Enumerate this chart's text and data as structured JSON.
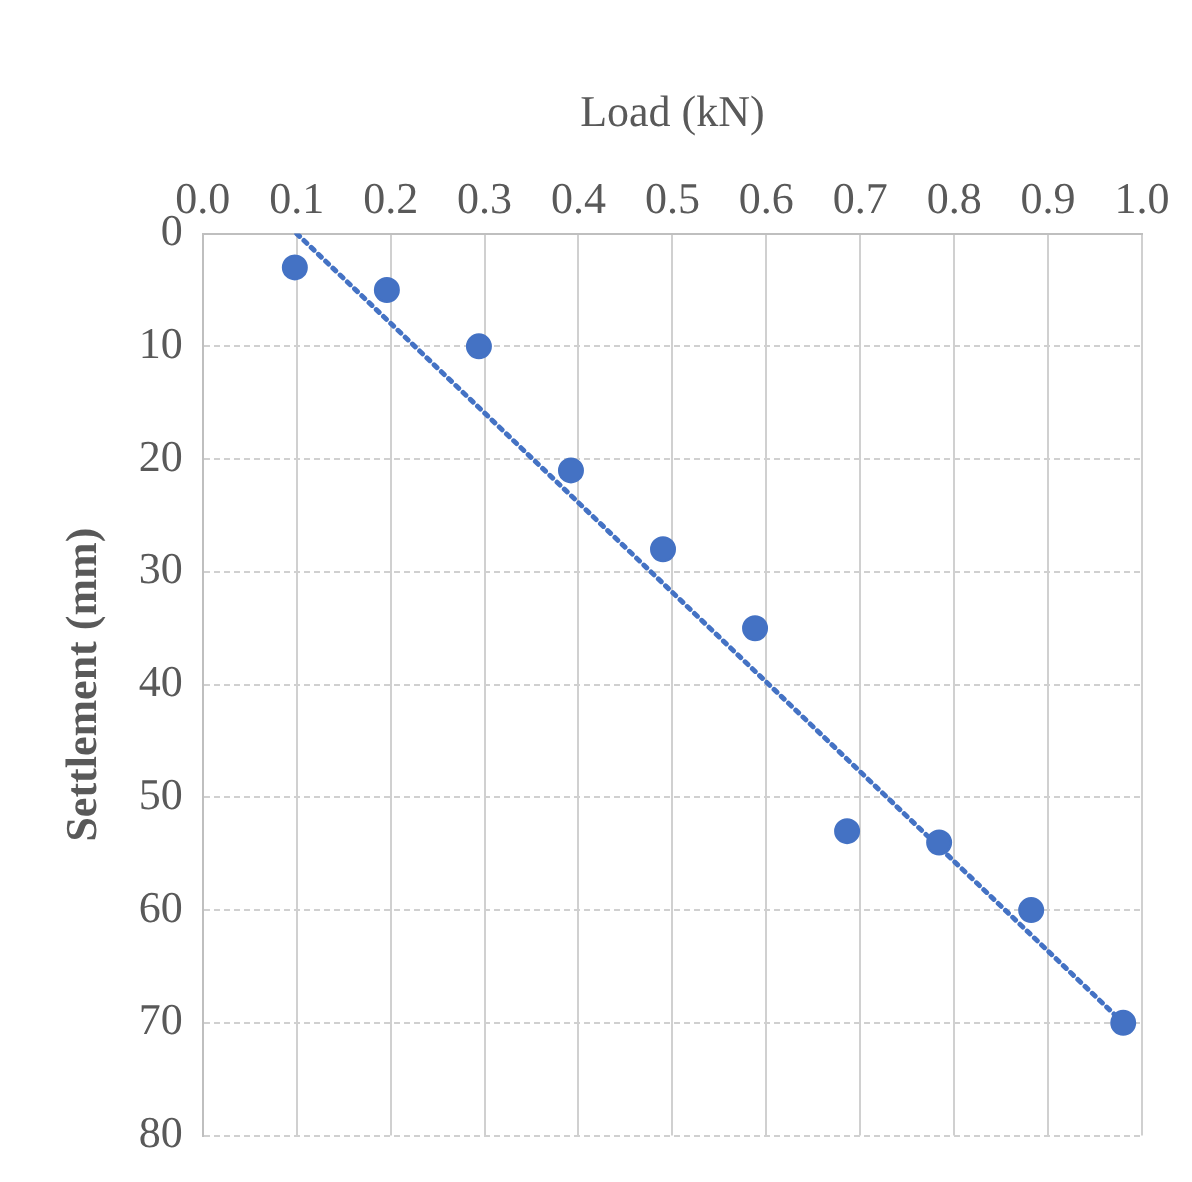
{
  "chart_data": {
    "type": "scatter",
    "xlabel": "Load (kN)",
    "ylabel": "Settlement (mm)",
    "x": [
      0.098,
      0.196,
      0.294,
      0.392,
      0.49,
      0.588,
      0.686,
      0.784,
      0.882,
      0.98
    ],
    "series": [
      {
        "color": "#4472c4",
        "values": [
          3,
          5,
          10,
          21,
          28,
          35,
          53,
          54,
          60,
          70
        ],
        "marker": "circle"
      },
      {
        "type": "line",
        "color": "#4472c4",
        "x": [
          0.1,
          0.98
        ],
        "values": [
          0,
          70
        ],
        "line_style": "dotted",
        "marker": "none"
      }
    ],
    "xlim": [
      0,
      1.0
    ],
    "xticks": [
      {
        "value": 0,
        "label": "0.0"
      },
      0.1,
      0.2,
      0.3,
      0.4,
      0.5,
      0.6,
      0.7,
      0.8,
      0.9,
      {
        "value": 1,
        "label": "1.0"
      }
    ],
    "ylim": [
      80,
      0
    ],
    "yticks": [
      0,
      10,
      20,
      30,
      40,
      50,
      60,
      70,
      80
    ],
    "grid": true
  }
}
